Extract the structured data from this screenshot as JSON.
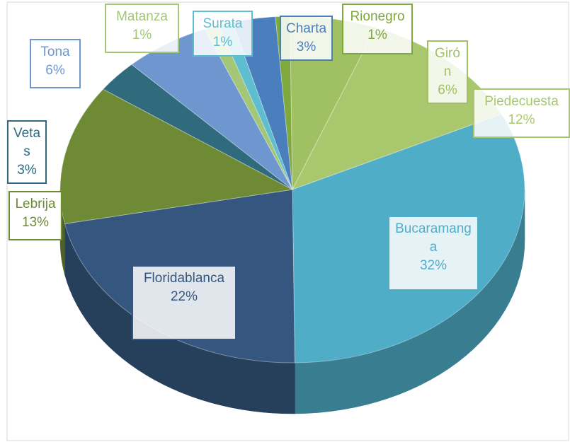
{
  "chart_data": {
    "type": "pie3d",
    "categories": [
      "Charta",
      "Rionegro",
      "Girón",
      "Piedecuesta",
      "Bucaramanga",
      "Floridablanca",
      "Lebrija",
      "Vetas",
      "Tona",
      "Matanza",
      "Surata"
    ],
    "values": [
      3,
      1,
      6,
      12,
      32,
      22,
      13,
      3,
      6,
      1,
      1
    ],
    "value_labels": [
      "3%",
      "1%",
      "6%",
      "12%",
      "32%",
      "22%",
      "13%",
      "3%",
      "6%",
      "1%",
      "1%"
    ],
    "colors": [
      "#4a7ebd",
      "#7fa83e",
      "#9fc163",
      "#a9c86e",
      "#4fadc8",
      "#35577f",
      "#6f8a35",
      "#2f6b7c",
      "#6f97cf",
      "#a3c677",
      "#5fbdd0"
    ]
  }
}
